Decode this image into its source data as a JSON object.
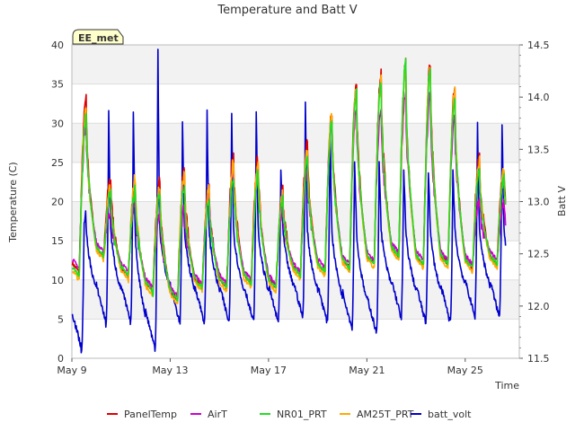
{
  "chart_data": {
    "type": "line",
    "title": "Temperature and Batt V",
    "xlabel": "Time",
    "ylabel": "Temperature (C)",
    "y2label": "Batt V",
    "badge": "EE_met",
    "x_start_label": "May 9",
    "xlim": [
      0,
      18.2
    ],
    "ylim": [
      0,
      40
    ],
    "y2lim": [
      11.5,
      14.5
    ],
    "xticks": [
      {
        "x": 0,
        "label": "May 9"
      },
      {
        "x": 4,
        "label": "May 13"
      },
      {
        "x": 8,
        "label": "May 17"
      },
      {
        "x": 12,
        "label": "May 21"
      },
      {
        "x": 16,
        "label": "May 25"
      }
    ],
    "yticks": [
      0,
      5,
      10,
      15,
      20,
      25,
      30,
      35,
      40
    ],
    "y2ticks": [
      "11.5",
      "12.0",
      "12.5",
      "13.0",
      "13.5",
      "14.0",
      "14.5"
    ],
    "grid": "horizontal bands",
    "legend_position": "bottom",
    "days": [
      "May 9",
      "May 10",
      "May 11",
      "May 12",
      "May 13",
      "May 14",
      "May 15",
      "May 16",
      "May 17",
      "May 18",
      "May 19",
      "May 20",
      "May 21",
      "May 22",
      "May 23",
      "May 24",
      "May 25",
      "May 26"
    ],
    "series": [
      {
        "name": "PanelTemp",
        "color": "#dd0000",
        "axis": "left",
        "daily_min": [
          11,
          13,
          10.5,
          8.5,
          7.5,
          9,
          9,
          9.5,
          9,
          10.5,
          11,
          11.5,
          12,
          13,
          12,
          12,
          11.5,
          12
        ],
        "daily_max": [
          33,
          23,
          22.5,
          22.5,
          24,
          21.5,
          26,
          25.5,
          21.5,
          27.5,
          31.5,
          35,
          36.5,
          37.5,
          37.5,
          34.5,
          25.5,
          24.5
        ]
      },
      {
        "name": "AirT",
        "color": "#cc00cc",
        "axis": "left",
        "daily_min": [
          11.5,
          13.5,
          11,
          9,
          8,
          9.5,
          9.5,
          10,
          9.5,
          11,
          11.5,
          12,
          12.5,
          13.5,
          12.5,
          12.5,
          12,
          12.5
        ],
        "daily_max": [
          30,
          19,
          20,
          18.5,
          19,
          21,
          24,
          23.5,
          19,
          24,
          30,
          32,
          32,
          34,
          33.5,
          30.5,
          20,
          20
        ]
      },
      {
        "name": "NR01_PRT",
        "color": "#22dd22",
        "axis": "left",
        "daily_min": [
          10.5,
          13,
          10.5,
          8.5,
          7.5,
          9,
          9,
          9.5,
          9,
          10.5,
          11,
          11.5,
          12,
          13,
          12,
          12,
          11.5,
          12
        ],
        "daily_max": [
          31,
          21,
          21.5,
          21,
          22,
          20.5,
          23,
          23.5,
          20.5,
          25.5,
          30,
          34,
          35,
          38,
          36.5,
          33.5,
          24,
          23
        ]
      },
      {
        "name": "AM25T_PRT",
        "color": "#ffaa00",
        "axis": "left",
        "daily_min": [
          10,
          12.5,
          10,
          8,
          7,
          8.5,
          8.5,
          9,
          8.5,
          10,
          10.5,
          11,
          11.5,
          12.5,
          11.5,
          11.5,
          11,
          11.5
        ],
        "daily_max": [
          32,
          22,
          23,
          22,
          23.5,
          21.5,
          25,
          25,
          21,
          26.5,
          31,
          34.5,
          35.5,
          37,
          37,
          34,
          25,
          24
        ]
      },
      {
        "name": "batt_volt",
        "color": "#0000cc",
        "axis": "right",
        "daily_min": [
          11.55,
          11.8,
          11.8,
          11.55,
          11.8,
          11.8,
          11.8,
          11.8,
          11.8,
          11.85,
          11.8,
          11.75,
          11.7,
          11.85,
          11.8,
          11.8,
          11.85,
          11.85
        ],
        "daily_max": [
          12.8,
          13.85,
          13.85,
          14.45,
          13.75,
          13.85,
          13.85,
          13.85,
          13.3,
          13.95,
          13.7,
          13.4,
          13.4,
          13.3,
          13.3,
          13.3,
          13.75,
          13.75
        ]
      }
    ]
  }
}
